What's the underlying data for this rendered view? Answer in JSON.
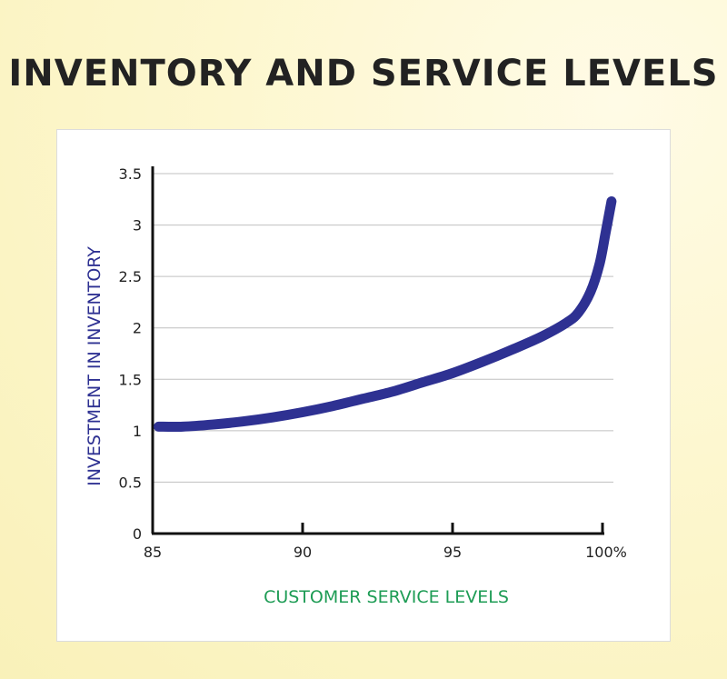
{
  "colors": {
    "title": "#222222",
    "curve": "#2e3192",
    "xlabel": "#1e9c55",
    "ylabel": "#2e3192",
    "grid": "#c0c0c0",
    "axis": "#111111"
  },
  "chart_data": {
    "type": "line",
    "title": "INVENTORY AND SERVICE LEVELS",
    "xlabel": "CUSTOMER SERVICE LEVELS",
    "ylabel": "INVESTMENT IN INVENTORY",
    "xlim": [
      85,
      100
    ],
    "ylim": [
      0,
      3.5
    ],
    "x_ticks": [
      85,
      90,
      95,
      100
    ],
    "x_tick_labels": [
      "85",
      "90",
      "95",
      "100%"
    ],
    "y_ticks": [
      0,
      0.5,
      1,
      1.5,
      2,
      2.5,
      3,
      3.5
    ],
    "y_tick_labels": [
      "0",
      "0.5",
      "1",
      "1.5",
      "2",
      "2.5",
      "3",
      "3.5"
    ],
    "grid": "horizontal",
    "series": [
      {
        "x": [
          85.2,
          86,
          87,
          88,
          89,
          90,
          91,
          92,
          93,
          94,
          95,
          96,
          97,
          98,
          98.8,
          99.2,
          99.6,
          99.9,
          100.1,
          100.3
        ],
        "y": [
          1.04,
          1.04,
          1.06,
          1.09,
          1.13,
          1.18,
          1.24,
          1.31,
          1.38,
          1.47,
          1.56,
          1.67,
          1.79,
          1.92,
          2.05,
          2.15,
          2.35,
          2.62,
          2.92,
          3.23
        ]
      }
    ]
  }
}
